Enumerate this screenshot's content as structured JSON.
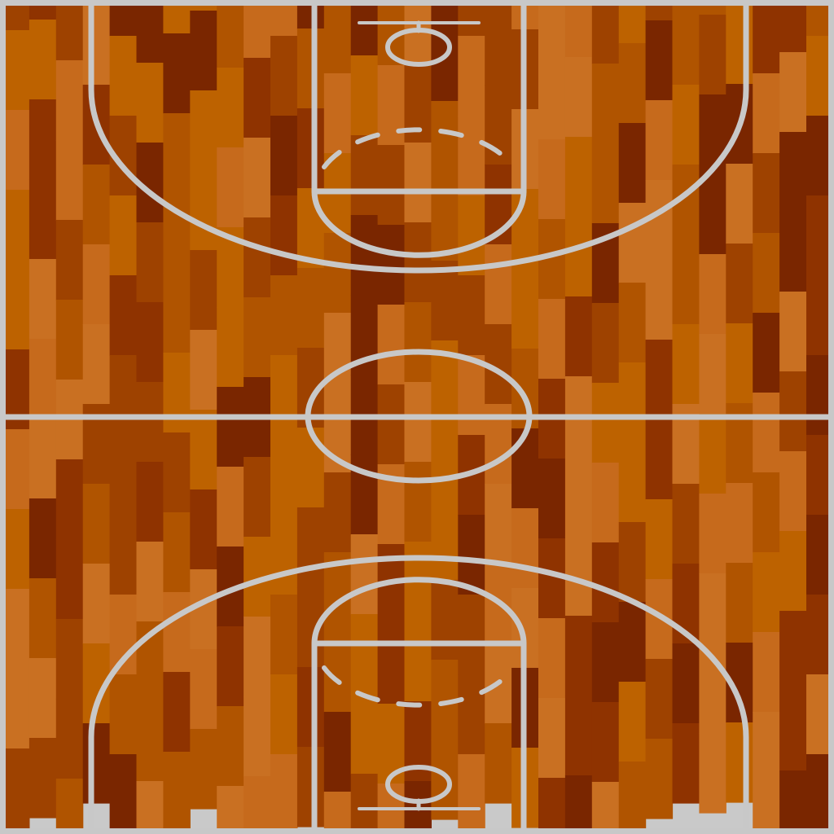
{
  "scene": {
    "type": "basketball-court-top-down",
    "surface": "wood-parquet",
    "orientation": "vertical",
    "halves": [
      "top-half",
      "bottom-half"
    ]
  },
  "colors": {
    "background": "#c9c9c9",
    "court_lines": "#c8c8c8",
    "wood_palette": [
      "#7a2600",
      "#8f3300",
      "#9e4200",
      "#b05400",
      "#bd6200",
      "#c97022",
      "#c66a1c"
    ]
  },
  "elements": {
    "hoop_icon": "basketball-hoop-icon",
    "center_circle": "center-circle",
    "three_point_arc": "three-point-arc",
    "free_throw_circle": "free-throw-circle",
    "paint": "paint-key"
  }
}
